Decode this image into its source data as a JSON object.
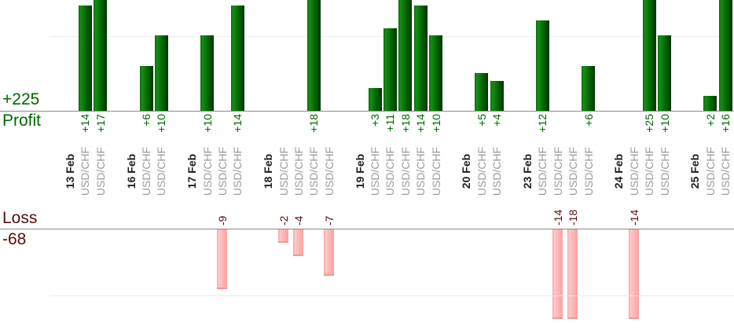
{
  "profit_section": {
    "total": "+225",
    "label": "Profit"
  },
  "loss_section": {
    "total": "-68",
    "label": "Loss"
  },
  "colors": {
    "profit_text": "#006600",
    "loss_text": "#530c0c",
    "profit_bar_main": "#0c800c",
    "loss_bar_main": "#ffbcbc",
    "symbol_text": "#9c9c9c",
    "date_text": "#1f1f1f",
    "axis_line": "#8a8a8a",
    "gridline": "#ececec"
  },
  "chart_data": {
    "type": "bar",
    "title": "",
    "xlabel": "",
    "ylabel": "",
    "legend": "none",
    "grid": "faint horizontal lines at +10 and -10",
    "symbol": "USD/CHF",
    "profit_total": 225,
    "loss_total": -68,
    "profit_axis_top_clip": 14.7,
    "loss_axis_bottom_clip": -13.5,
    "groups": [
      {
        "date": "13 Feb",
        "values": [
          14,
          17
        ]
      },
      {
        "date": "16 Feb",
        "values": [
          6,
          10
        ]
      },
      {
        "date": "17 Feb",
        "values": [
          10,
          -9,
          14
        ]
      },
      {
        "date": "18 Feb",
        "values": [
          -2,
          -4,
          18,
          -7
        ]
      },
      {
        "date": "19 Feb",
        "values": [
          3,
          11,
          18,
          14,
          10
        ]
      },
      {
        "date": "20 Feb",
        "values": [
          5,
          4
        ]
      },
      {
        "date": "23 Feb",
        "values": [
          12,
          -14,
          -18,
          6
        ]
      },
      {
        "date": "24 Feb",
        "values": [
          -14,
          25,
          10
        ]
      },
      {
        "date": "25 Feb",
        "values": [
          2,
          16
        ]
      }
    ]
  }
}
